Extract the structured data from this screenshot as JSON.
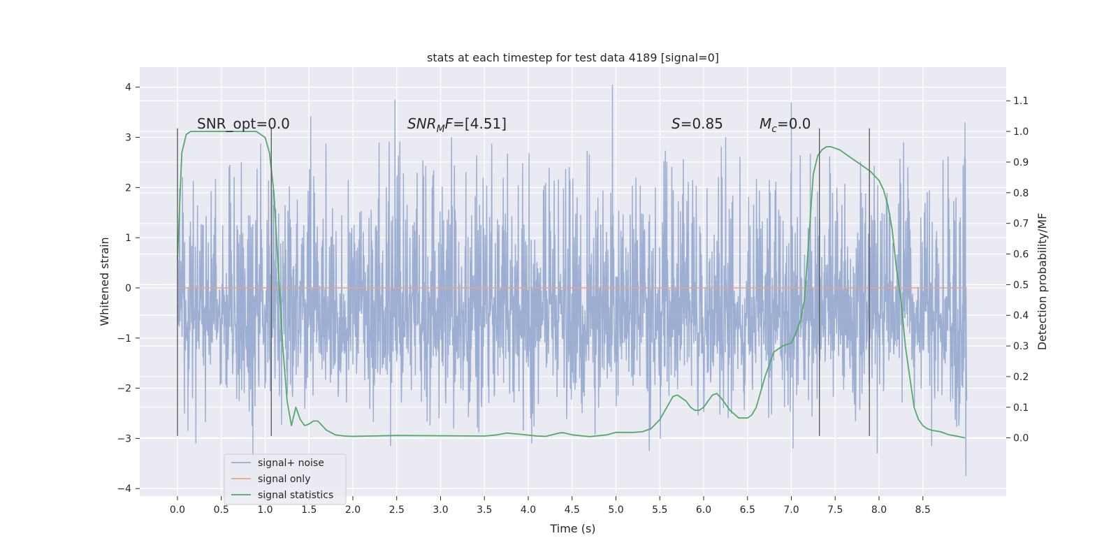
{
  "chart_data": {
    "type": "line",
    "title": "stats at each timestep for test data 4189 [signal=0]",
    "xlabel": "Time (s)",
    "ylabel": "Whitened strain",
    "y2label": "Detection probability/MF",
    "xlim": [
      -0.43,
      9.45
    ],
    "ylim": [
      -4.15,
      4.4
    ],
    "y2lim": [
      -0.19,
      1.21
    ],
    "xticks": [
      0.0,
      0.5,
      1.0,
      1.5,
      2.0,
      2.5,
      3.0,
      3.5,
      4.0,
      4.5,
      5.0,
      5.5,
      6.0,
      6.5,
      7.0,
      7.5,
      8.0,
      8.5
    ],
    "xtick_labels": [
      "0.0",
      "0.5",
      "1.0",
      "1.5",
      "2.0",
      "2.5",
      "3.0",
      "3.5",
      "4.0",
      "4.5",
      "5.0",
      "5.5",
      "6.0",
      "6.5",
      "7.0",
      "7.5",
      "8.0",
      "8.5"
    ],
    "yticks": [
      -4,
      -3,
      -2,
      -1,
      0,
      1,
      2,
      3,
      4
    ],
    "ytick_labels": [
      "−4",
      "−3",
      "−2",
      "−1",
      "0",
      "1",
      "2",
      "3",
      "4"
    ],
    "y2ticks": [
      0.0,
      0.1,
      0.2,
      0.3,
      0.4,
      0.5,
      0.6,
      0.7,
      0.8,
      0.9,
      1.0,
      1.1
    ],
    "y2tick_labels": [
      "0.0",
      "0.1",
      "0.2",
      "0.3",
      "0.4",
      "0.5",
      "0.6",
      "0.7",
      "0.8",
      "0.9",
      "1.0",
      "1.1"
    ],
    "grid": true,
    "legend_position": "lower-left",
    "legend": [
      {
        "label": "signal+ noise",
        "color": "#98abd0"
      },
      {
        "label": "signal only",
        "color": "#e3a58c"
      },
      {
        "label": "signal statistics",
        "color": "#55a868"
      }
    ],
    "noise": {
      "name": "signal+ noise",
      "t_start": 0.0,
      "t_end": 9.0,
      "band": [
        -1.6,
        1.55
      ],
      "envelope": [
        -3.1,
        3.2
      ],
      "extreme_spikes": [
        [
          0.08,
          -2.5
        ],
        [
          0.12,
          -2.85
        ],
        [
          0.21,
          -3.1
        ],
        [
          0.86,
          -3.35
        ],
        [
          2.48,
          3.75
        ],
        [
          2.43,
          -3.15
        ],
        [
          4.04,
          -3.1
        ],
        [
          4.96,
          4.05
        ],
        [
          5.38,
          -3.25
        ],
        [
          7.0,
          3.7
        ],
        [
          7.02,
          -3.2
        ],
        [
          7.98,
          -3.3
        ],
        [
          8.6,
          -3.15
        ],
        [
          8.98,
          3.3
        ],
        [
          8.99,
          -3.75
        ],
        [
          1.52,
          3.42
        ]
      ]
    },
    "signal_only": {
      "name": "signal only",
      "value": 0.0
    },
    "statistics": {
      "name": "signal statistics",
      "axis": "right",
      "x": [
        0.0,
        0.05,
        0.1,
        0.15,
        0.2,
        0.3,
        0.4,
        0.5,
        0.6,
        0.7,
        0.8,
        0.9,
        0.95,
        1.0,
        1.05,
        1.1,
        1.15,
        1.2,
        1.25,
        1.3,
        1.35,
        1.4,
        1.45,
        1.5,
        1.55,
        1.6,
        1.65,
        1.7,
        1.8,
        1.9,
        2.0,
        2.2,
        2.5,
        3.0,
        3.5,
        3.65,
        3.75,
        3.9,
        4.1,
        4.2,
        4.3,
        4.35,
        4.4,
        4.5,
        4.7,
        4.9,
        5.0,
        5.2,
        5.3,
        5.4,
        5.5,
        5.6,
        5.65,
        5.7,
        5.8,
        5.85,
        5.9,
        5.95,
        6.0,
        6.05,
        6.1,
        6.15,
        6.2,
        6.3,
        6.4,
        6.5,
        6.55,
        6.6,
        6.7,
        6.8,
        6.9,
        7.0,
        7.05,
        7.1,
        7.15,
        7.2,
        7.25,
        7.3,
        7.35,
        7.4,
        7.45,
        7.5,
        7.55,
        7.6,
        7.7,
        7.8,
        7.9,
        8.0,
        8.05,
        8.1,
        8.15,
        8.2,
        8.25,
        8.3,
        8.35,
        8.4,
        8.45,
        8.5,
        8.55,
        8.6,
        8.7,
        8.8,
        8.9,
        8.98
      ],
      "y": [
        0.58,
        0.93,
        0.99,
        1.0,
        1.0,
        1.0,
        1.0,
        1.0,
        1.0,
        1.0,
        1.0,
        1.0,
        0.99,
        0.98,
        0.93,
        0.8,
        0.55,
        0.3,
        0.12,
        0.04,
        0.1,
        0.06,
        0.04,
        0.045,
        0.055,
        0.055,
        0.04,
        0.025,
        0.01,
        0.006,
        0.005,
        0.006,
        0.008,
        0.007,
        0.006,
        0.01,
        0.016,
        0.012,
        0.006,
        0.005,
        0.012,
        0.016,
        0.017,
        0.01,
        0.004,
        0.01,
        0.018,
        0.018,
        0.02,
        0.03,
        0.06,
        0.11,
        0.135,
        0.14,
        0.12,
        0.1,
        0.09,
        0.09,
        0.1,
        0.12,
        0.14,
        0.145,
        0.13,
        0.09,
        0.065,
        0.065,
        0.075,
        0.1,
        0.2,
        0.28,
        0.3,
        0.31,
        0.34,
        0.38,
        0.45,
        0.65,
        0.86,
        0.92,
        0.94,
        0.95,
        0.95,
        0.945,
        0.94,
        0.93,
        0.91,
        0.89,
        0.87,
        0.84,
        0.81,
        0.76,
        0.68,
        0.55,
        0.45,
        0.3,
        0.2,
        0.1,
        0.06,
        0.04,
        0.03,
        0.025,
        0.02,
        0.01,
        0.005,
        0.0
      ]
    },
    "vlines_y": [
      -2.95,
      3.18
    ],
    "vlines": [
      0.0,
      1.07,
      7.32,
      7.89
    ],
    "annotations": [
      {
        "text": "SNR_opt=0.0",
        "x": 0.2
      },
      {
        "text": "SNR_M F=[4.51]",
        "x": 2.6
      },
      {
        "text": "S=0.85",
        "x": 5.6
      },
      {
        "text": "M_c=0.0",
        "x": 6.6
      }
    ],
    "annotation_y": 3.15
  },
  "annotation_parts": {
    "snr_opt": "SNR_opt=0.0",
    "snr_mf_sym": "SNR",
    "snr_mf_sub": "M",
    "snr_mf_rest": "F",
    "snr_mf_val": "=[4.51]",
    "s_sym": "S",
    "s_val": "=0.85",
    "mc_sym": "M",
    "mc_sub": "c",
    "mc_val": "=0.0"
  }
}
